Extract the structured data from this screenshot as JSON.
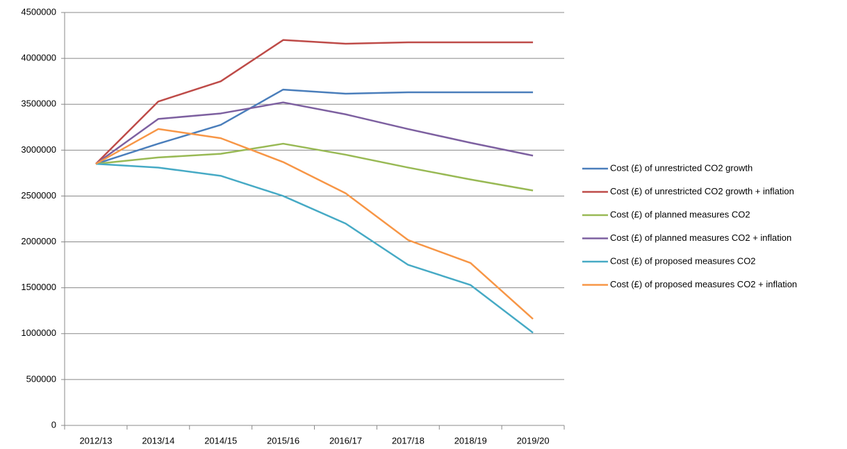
{
  "chart_data": {
    "type": "line",
    "categories": [
      "2012/13",
      "2013/14",
      "2014/15",
      "2015/16",
      "2016/17",
      "2017/18",
      "2018/19",
      "2019/20"
    ],
    "series": [
      {
        "name": "Cost (£) of unrestricted CO2 growth",
        "color": "#4a7ebb",
        "values": [
          2850000,
          3070000,
          3275000,
          3660000,
          3615000,
          3630000,
          3630000,
          3630000
        ]
      },
      {
        "name": "Cost (£) of unrestricted CO2 growth + inflation",
        "color": "#be4b48",
        "values": [
          2850000,
          3530000,
          3750000,
          4200000,
          4160000,
          4175000,
          4175000,
          4175000
        ]
      },
      {
        "name": "Cost (£) of planned measures CO2",
        "color": "#98b954",
        "values": [
          2850000,
          2920000,
          2960000,
          3070000,
          2950000,
          2810000,
          2680000,
          2560000
        ]
      },
      {
        "name": "Cost (£) of planned measures CO2 + inflation",
        "color": "#7d60a0",
        "values": [
          2850000,
          3340000,
          3400000,
          3520000,
          3390000,
          3230000,
          3080000,
          2940000
        ]
      },
      {
        "name": "Cost (£) of proposed measures CO2",
        "color": "#46aac5",
        "values": [
          2850000,
          2810000,
          2720000,
          2500000,
          2200000,
          1750000,
          1530000,
          1010000
        ]
      },
      {
        "name": "Cost (£) of proposed measures CO2 + inflation",
        "color": "#f79646",
        "values": [
          2850000,
          3230000,
          3130000,
          2870000,
          2530000,
          2020000,
          1770000,
          1160000
        ]
      }
    ],
    "ylim": [
      0,
      4500000
    ],
    "yticks": [
      0,
      500000,
      1000000,
      1500000,
      2000000,
      2500000,
      3000000,
      3500000,
      4000000,
      4500000
    ],
    "grid": true,
    "legend": "right"
  }
}
